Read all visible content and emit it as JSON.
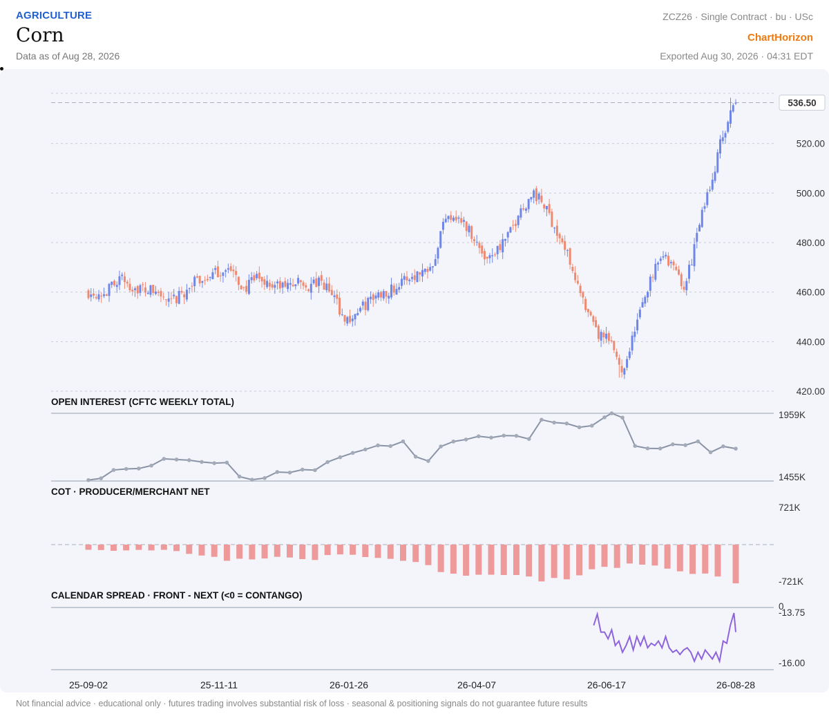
{
  "header": {
    "category": "AGRICULTURE",
    "title": "Corn",
    "data_as_of": "Data as of Aug 28, 2026",
    "contract": "ZCZ26 · Single Contract · bu · USc",
    "brand": "ChartHorizon",
    "exported": "Exported Aug 30, 2026 · 04:31 EDT"
  },
  "footer": {
    "disclaimer": "Not financial advice · educational only · futures trading involves substantial risk of loss · seasonal & positioning signals do not guarantee future results"
  },
  "colors": {
    "up": "#6f86e6",
    "down": "#ee8a72",
    "oi_line": "#8a93a6",
    "cot_bar": "#ee9a9a",
    "spread_line": "#8e63db",
    "grid": "#c7ccd6"
  },
  "chart_data": [
    {
      "type": "candlestick",
      "title": "",
      "ylim": [
        420,
        540
      ],
      "y_ticks": [
        "420.00",
        "440.00",
        "460.00",
        "480.00",
        "500.00",
        "520.00"
      ],
      "last_price_label": "536.50",
      "last_price": 536.5,
      "x_tick_labels": [
        "25-09-02",
        "25-11-11",
        "26-01-26",
        "26-04-07",
        "26-06-17",
        "26-08-28"
      ],
      "x_range": [
        "2025-09-02",
        "2026-08-28"
      ],
      "close_path": [
        [
          "2025-09-02",
          460
        ],
        [
          "2025-09-12",
          460
        ],
        [
          "2025-09-19",
          466
        ],
        [
          "2025-09-26",
          462
        ],
        [
          "2025-10-03",
          461
        ],
        [
          "2025-10-10",
          460
        ],
        [
          "2025-10-17",
          455
        ],
        [
          "2025-10-24",
          459
        ],
        [
          "2025-10-31",
          464
        ],
        [
          "2025-11-07",
          466
        ],
        [
          "2025-11-14",
          468
        ],
        [
          "2025-11-18",
          470
        ],
        [
          "2025-11-28",
          461
        ],
        [
          "2025-12-05",
          466
        ],
        [
          "2025-12-12",
          463
        ],
        [
          "2025-12-19",
          462
        ],
        [
          "2025-12-26",
          464
        ],
        [
          "2026-01-02",
          462
        ],
        [
          "2026-01-09",
          464
        ],
        [
          "2026-01-16",
          459
        ],
        [
          "2026-01-23",
          448
        ],
        [
          "2026-01-30",
          452
        ],
        [
          "2026-02-06",
          457
        ],
        [
          "2026-02-13",
          460
        ],
        [
          "2026-02-20",
          462
        ],
        [
          "2026-02-27",
          466
        ],
        [
          "2026-03-06",
          468
        ],
        [
          "2026-03-13",
          473
        ],
        [
          "2026-03-20",
          492
        ],
        [
          "2026-03-27",
          490
        ],
        [
          "2026-04-03",
          484
        ],
        [
          "2026-04-10",
          474
        ],
        [
          "2026-04-17",
          477
        ],
        [
          "2026-04-24",
          483
        ],
        [
          "2026-05-01",
          494
        ],
        [
          "2026-05-08",
          500
        ],
        [
          "2026-05-15",
          493
        ],
        [
          "2026-05-22",
          482
        ],
        [
          "2026-05-29",
          471
        ],
        [
          "2026-06-05",
          453
        ],
        [
          "2026-06-12",
          443
        ],
        [
          "2026-06-19",
          440
        ],
        [
          "2026-06-26",
          428
        ],
        [
          "2026-07-03",
          445
        ],
        [
          "2026-07-10",
          462
        ],
        [
          "2026-07-17",
          476
        ],
        [
          "2026-07-24",
          470
        ],
        [
          "2026-07-31",
          462
        ],
        [
          "2026-08-07",
          485
        ],
        [
          "2026-08-14",
          504
        ],
        [
          "2026-08-21",
          524
        ],
        [
          "2026-08-28",
          536.5
        ]
      ],
      "high": 538.5,
      "low": 425.5
    },
    {
      "type": "line",
      "title": "OPEN INTEREST (CFTC WEEKLY TOTAL)",
      "ylim": [
        1455,
        1959
      ],
      "y_tick_labels": [
        "1959K",
        "1455K"
      ],
      "points": [
        [
          "2025-09-02",
          1462
        ],
        [
          "2025-09-09",
          1475
        ],
        [
          "2025-09-16",
          1537
        ],
        [
          "2025-09-23",
          1545
        ],
        [
          "2025-09-30",
          1548
        ],
        [
          "2025-10-07",
          1570
        ],
        [
          "2025-10-14",
          1620
        ],
        [
          "2025-10-21",
          1615
        ],
        [
          "2025-10-28",
          1610
        ],
        [
          "2025-11-04",
          1597
        ],
        [
          "2025-11-11",
          1588
        ],
        [
          "2025-11-18",
          1592
        ],
        [
          "2025-11-25",
          1488
        ],
        [
          "2025-12-02",
          1465
        ],
        [
          "2025-12-09",
          1477
        ],
        [
          "2025-12-16",
          1522
        ],
        [
          "2025-12-23",
          1518
        ],
        [
          "2025-12-30",
          1540
        ],
        [
          "2026-01-06",
          1536
        ],
        [
          "2026-01-13",
          1596
        ],
        [
          "2026-01-20",
          1632
        ],
        [
          "2026-01-27",
          1664
        ],
        [
          "2026-02-03",
          1690
        ],
        [
          "2026-02-10",
          1720
        ],
        [
          "2026-02-17",
          1715
        ],
        [
          "2026-02-24",
          1750
        ],
        [
          "2026-03-03",
          1636
        ],
        [
          "2026-03-10",
          1604
        ],
        [
          "2026-03-17",
          1712
        ],
        [
          "2026-03-24",
          1749
        ],
        [
          "2026-03-31",
          1764
        ],
        [
          "2026-04-07",
          1788
        ],
        [
          "2026-04-14",
          1778
        ],
        [
          "2026-04-21",
          1793
        ],
        [
          "2026-04-28",
          1791
        ],
        [
          "2026-05-05",
          1768
        ],
        [
          "2026-05-12",
          1911
        ],
        [
          "2026-05-19",
          1890
        ],
        [
          "2026-05-26",
          1883
        ],
        [
          "2026-06-02",
          1855
        ],
        [
          "2026-06-09",
          1867
        ],
        [
          "2026-06-16",
          1929
        ],
        [
          "2026-06-20",
          1959
        ],
        [
          "2026-06-26",
          1927
        ],
        [
          "2026-07-03",
          1716
        ],
        [
          "2026-07-10",
          1698
        ],
        [
          "2026-07-17",
          1697
        ],
        [
          "2026-07-24",
          1728
        ],
        [
          "2026-07-31",
          1722
        ],
        [
          "2026-08-07",
          1750
        ],
        [
          "2026-08-14",
          1669
        ],
        [
          "2026-08-21",
          1713
        ],
        [
          "2026-08-28",
          1696
        ]
      ]
    },
    {
      "type": "bar",
      "title": "COT · PRODUCER/MERCHANT NET",
      "ylim": [
        -721,
        721
      ],
      "y_tick_labels": [
        "721K",
        "-721K"
      ],
      "points": [
        [
          "2025-09-02",
          -98
        ],
        [
          "2025-09-09",
          -103
        ],
        [
          "2025-09-16",
          -117
        ],
        [
          "2025-09-23",
          -110
        ],
        [
          "2025-09-30",
          -100
        ],
        [
          "2025-10-07",
          -110
        ],
        [
          "2025-10-14",
          -99
        ],
        [
          "2025-10-21",
          -123
        ],
        [
          "2025-10-28",
          -176
        ],
        [
          "2025-11-04",
          -207
        ],
        [
          "2025-11-11",
          -232
        ],
        [
          "2025-11-18",
          -307
        ],
        [
          "2025-11-25",
          -268
        ],
        [
          "2025-12-02",
          -281
        ],
        [
          "2025-12-09",
          -263
        ],
        [
          "2025-12-16",
          -232
        ],
        [
          "2025-12-23",
          -245
        ],
        [
          "2025-12-30",
          -275
        ],
        [
          "2026-01-06",
          -292
        ],
        [
          "2026-01-13",
          -198
        ],
        [
          "2026-01-20",
          -186
        ],
        [
          "2026-01-27",
          -193
        ],
        [
          "2026-02-03",
          -236
        ],
        [
          "2026-02-10",
          -253
        ],
        [
          "2026-02-17",
          -270
        ],
        [
          "2026-02-24",
          -307
        ],
        [
          "2026-03-03",
          -330
        ],
        [
          "2026-03-10",
          -389
        ],
        [
          "2026-03-17",
          -521
        ],
        [
          "2026-03-24",
          -551
        ],
        [
          "2026-03-31",
          -590
        ],
        [
          "2026-04-07",
          -571
        ],
        [
          "2026-04-14",
          -571
        ],
        [
          "2026-04-21",
          -577
        ],
        [
          "2026-04-28",
          -577
        ],
        [
          "2026-05-05",
          -605
        ],
        [
          "2026-05-12",
          -698
        ],
        [
          "2026-05-19",
          -633
        ],
        [
          "2026-05-26",
          -659
        ],
        [
          "2026-06-02",
          -583
        ],
        [
          "2026-06-09",
          -468
        ],
        [
          "2026-06-16",
          -422
        ],
        [
          "2026-06-23",
          -442
        ],
        [
          "2026-06-30",
          -358
        ],
        [
          "2026-07-07",
          -380
        ],
        [
          "2026-07-14",
          -397
        ],
        [
          "2026-07-21",
          -456
        ],
        [
          "2026-07-28",
          -507
        ],
        [
          "2026-08-04",
          -556
        ],
        [
          "2026-08-11",
          -549
        ],
        [
          "2026-08-18",
          -605
        ],
        [
          "2026-08-28",
          -735
        ]
      ]
    },
    {
      "type": "line",
      "title": "CALENDAR SPREAD · FRONT - NEXT (<0 = CONTANGO)",
      "ylim": [
        -16.3,
        0
      ],
      "y_tick_labels": [
        "0",
        "-13.75",
        "-16.00"
      ],
      "y_tick_values": [
        0,
        -13.75,
        -16.0
      ],
      "points": [
        [
          "2026-06-10",
          -14.3
        ],
        [
          "2026-06-12",
          -13.8
        ],
        [
          "2026-06-14",
          -14.6
        ],
        [
          "2026-06-16",
          -14.6
        ],
        [
          "2026-06-18",
          -14.9
        ],
        [
          "2026-06-20",
          -14.5
        ],
        [
          "2026-06-22",
          -15.2
        ],
        [
          "2026-06-24",
          -15.0
        ],
        [
          "2026-06-26",
          -15.5
        ],
        [
          "2026-06-28",
          -15.2
        ],
        [
          "2026-06-30",
          -14.8
        ],
        [
          "2026-07-02",
          -15.4
        ],
        [
          "2026-07-04",
          -14.8
        ],
        [
          "2026-07-06",
          -15.2
        ],
        [
          "2026-07-08",
          -14.8
        ],
        [
          "2026-07-10",
          -15.3
        ],
        [
          "2026-07-12",
          -15.1
        ],
        [
          "2026-07-14",
          -15.2
        ],
        [
          "2026-07-16",
          -15.0
        ],
        [
          "2026-07-18",
          -15.3
        ],
        [
          "2026-07-20",
          -14.8
        ],
        [
          "2026-07-22",
          -15.3
        ],
        [
          "2026-07-24",
          -15.5
        ],
        [
          "2026-07-26",
          -15.4
        ],
        [
          "2026-07-28",
          -15.6
        ],
        [
          "2026-07-30",
          -15.4
        ],
        [
          "2026-08-01",
          -15.3
        ],
        [
          "2026-08-03",
          -15.5
        ],
        [
          "2026-08-05",
          -15.9
        ],
        [
          "2026-08-07",
          -15.5
        ],
        [
          "2026-08-09",
          -15.8
        ],
        [
          "2026-08-11",
          -15.4
        ],
        [
          "2026-08-13",
          -15.6
        ],
        [
          "2026-08-15",
          -15.8
        ],
        [
          "2026-08-17",
          -15.5
        ],
        [
          "2026-08-19",
          -15.9
        ],
        [
          "2026-08-21",
          -15.0
        ],
        [
          "2026-08-23",
          -15.1
        ],
        [
          "2026-08-25",
          -14.3
        ],
        [
          "2026-08-27",
          -13.7
        ],
        [
          "2026-08-28",
          -14.6
        ]
      ]
    }
  ]
}
